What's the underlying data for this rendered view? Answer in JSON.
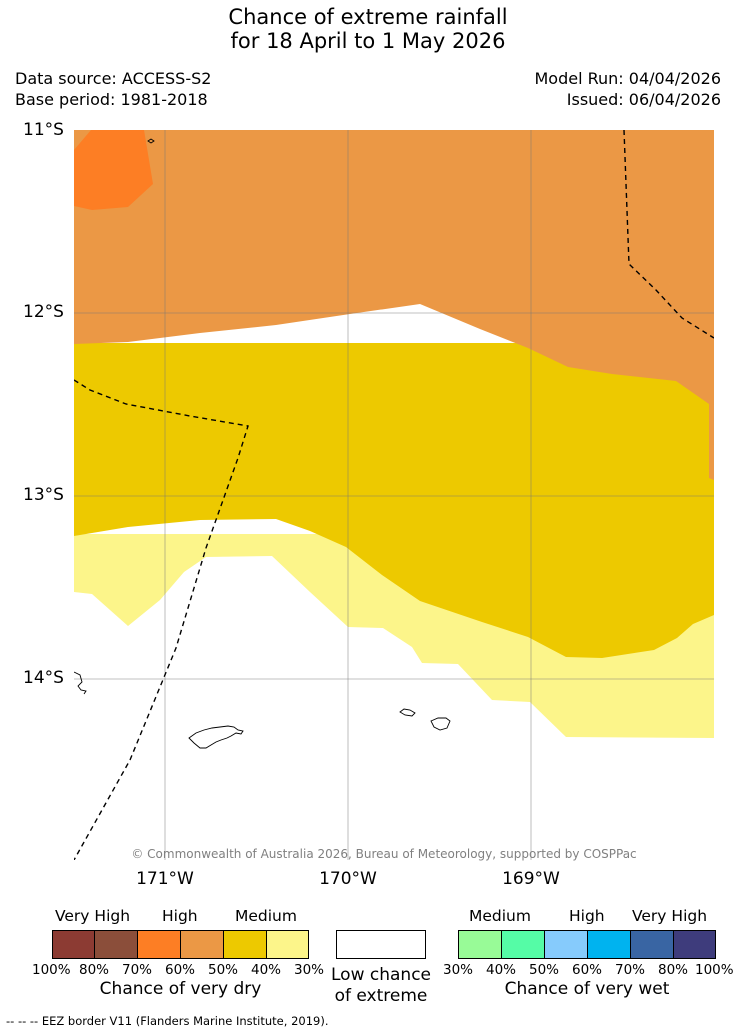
{
  "header": {
    "title_line1": "Chance of extreme rainfall",
    "title_line2": "for 18 April to 1 May 2026",
    "data_source": "Data source: ACCESS-S2",
    "base_period": "Base period: 1981-2018",
    "model_run": "Model Run: 04/04/2026",
    "issued": "Issued: 06/04/2026"
  },
  "map": {
    "lat_ticks": [
      "11°S",
      "12°S",
      "13°S",
      "14°S"
    ],
    "lon_ticks": [
      "171°W",
      "170°W",
      "169°W"
    ],
    "copyright": "© Commonwealth of Australia 2026, Bureau of Meteorology, supported by COSPPac",
    "colors": {
      "dry_high": "#fd7e24",
      "dry_medium_upper": "#eb9845",
      "dry_medium": "#edc900",
      "dry_low": "#fcf58a",
      "low_chance": "#ffffff"
    }
  },
  "legend": {
    "dry": {
      "labels": [
        "Very High",
        "High",
        "Medium"
      ],
      "swatches": [
        "#8c3b33",
        "#8b4e3a",
        "#fd7e24",
        "#eb9845",
        "#edc900",
        "#fcf58a"
      ],
      "ticks": [
        "100%",
        "80%",
        "70%",
        "60%",
        "50%",
        "40%",
        "30%"
      ],
      "caption": "Chance of very dry"
    },
    "neutral": {
      "swatch": "#ffffff",
      "caption_line1": "Low chance",
      "caption_line2": "of extreme"
    },
    "wet": {
      "labels": [
        "Medium",
        "High",
        "Very High"
      ],
      "swatches": [
        "#98fb97",
        "#55fca6",
        "#86cbfc",
        "#00b3ef",
        "#3965a3",
        "#3e3c7c"
      ],
      "ticks": [
        "30%",
        "40%",
        "50%",
        "60%",
        "70%",
        "80%",
        "100%"
      ],
      "caption": "Chance of very wet"
    }
  },
  "footnote": "--  --  -- EEZ border V11 (Flanders Marine Institute, 2019)."
}
